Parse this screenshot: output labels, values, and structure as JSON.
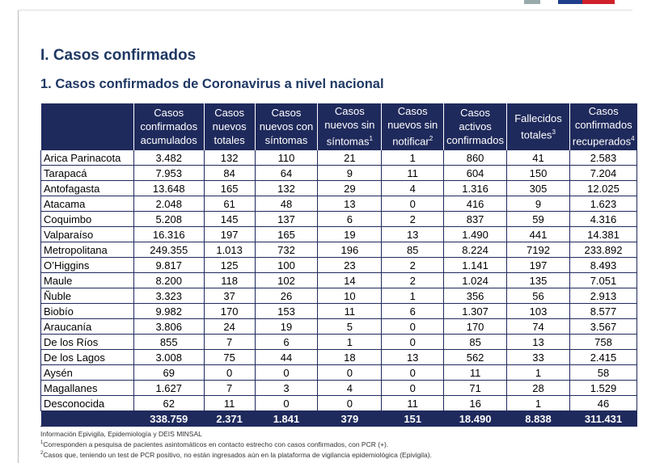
{
  "header": {
    "title": "I. Casos confirmados",
    "subtitle": "1. Casos confirmados de Coronavirus a nivel nacional"
  },
  "table": {
    "columns": [
      {
        "text": "Casos confirmados acumulados"
      },
      {
        "text": "Casos nuevos totales"
      },
      {
        "text": "Casos nuevos con síntomas"
      },
      {
        "text": "Casos nuevos sin síntomas",
        "note": "1"
      },
      {
        "text": "Casos nuevos sin notificar",
        "note": "2"
      },
      {
        "text": "Casos activos confirmados"
      },
      {
        "text": "Fallecidos totales",
        "note": "3"
      },
      {
        "text": "Casos confirmados recuperados",
        "note": "4"
      }
    ],
    "rows": [
      [
        "Arica Parinacota",
        "3.482",
        "132",
        "110",
        "21",
        "1",
        "860",
        "41",
        "2.583"
      ],
      [
        "Tarapacá",
        "7.953",
        "84",
        "64",
        "9",
        "11",
        "604",
        "150",
        "7.204"
      ],
      [
        "Antofagasta",
        "13.648",
        "165",
        "132",
        "29",
        "4",
        "1.316",
        "305",
        "12.025"
      ],
      [
        "Atacama",
        "2.048",
        "61",
        "48",
        "13",
        "0",
        "416",
        "9",
        "1.623"
      ],
      [
        "Coquimbo",
        "5.208",
        "145",
        "137",
        "6",
        "2",
        "837",
        "59",
        "4.316"
      ],
      [
        "Valparaíso",
        "16.316",
        "197",
        "165",
        "19",
        "13",
        "1.490",
        "441",
        "14.381"
      ],
      [
        "Metropolitana",
        "249.355",
        "1.013",
        "732",
        "196",
        "85",
        "8.224",
        "7192",
        "233.892"
      ],
      [
        "O’Higgins",
        "9.817",
        "125",
        "100",
        "23",
        "2",
        "1.141",
        "197",
        "8.493"
      ],
      [
        "Maule",
        "8.200",
        "118",
        "102",
        "14",
        "2",
        "1.024",
        "135",
        "7.051"
      ],
      [
        "Ñuble",
        "3.323",
        "37",
        "26",
        "10",
        "1",
        "356",
        "56",
        "2.913"
      ],
      [
        "Biobío",
        "9.982",
        "170",
        "153",
        "11",
        "6",
        "1.307",
        "103",
        "8.577"
      ],
      [
        "Araucanía",
        "3.806",
        "24",
        "19",
        "5",
        "0",
        "170",
        "74",
        "3.567"
      ],
      [
        "De los Ríos",
        "855",
        "7",
        "6",
        "1",
        "0",
        "85",
        "13",
        "758"
      ],
      [
        "De los Lagos",
        "3.008",
        "75",
        "44",
        "18",
        "13",
        "562",
        "33",
        "2.415"
      ],
      [
        "Aysén",
        "69",
        "0",
        "0",
        "0",
        "0",
        "11",
        "1",
        "58"
      ],
      [
        "Magallanes",
        "1.627",
        "7",
        "3",
        "4",
        "0",
        "71",
        "28",
        "1.529"
      ],
      [
        "Desconocida",
        "62",
        "11",
        "0",
        "0",
        "11",
        "16",
        "1",
        "46"
      ]
    ],
    "total": [
      "338.759",
      "2.371",
      "1.841",
      "379",
      "151",
      "18.490",
      "8.838",
      "311.431"
    ]
  },
  "footnotes": {
    "source": "Información Epivigila, Epidemiología y DEIS MINSAL",
    "notes": [
      {
        "mark": "1",
        "text": "Corresponden a pesquisa de pacientes asintomáticos en contacto estrecho con casos confirmados, con PCR (+)."
      },
      {
        "mark": "2",
        "text": "Casos que, teniendo un test de PCR positivo, no están ingresados aún en la plataforma de vigilancia epidemiológica (Epivigila)."
      }
    ]
  }
}
